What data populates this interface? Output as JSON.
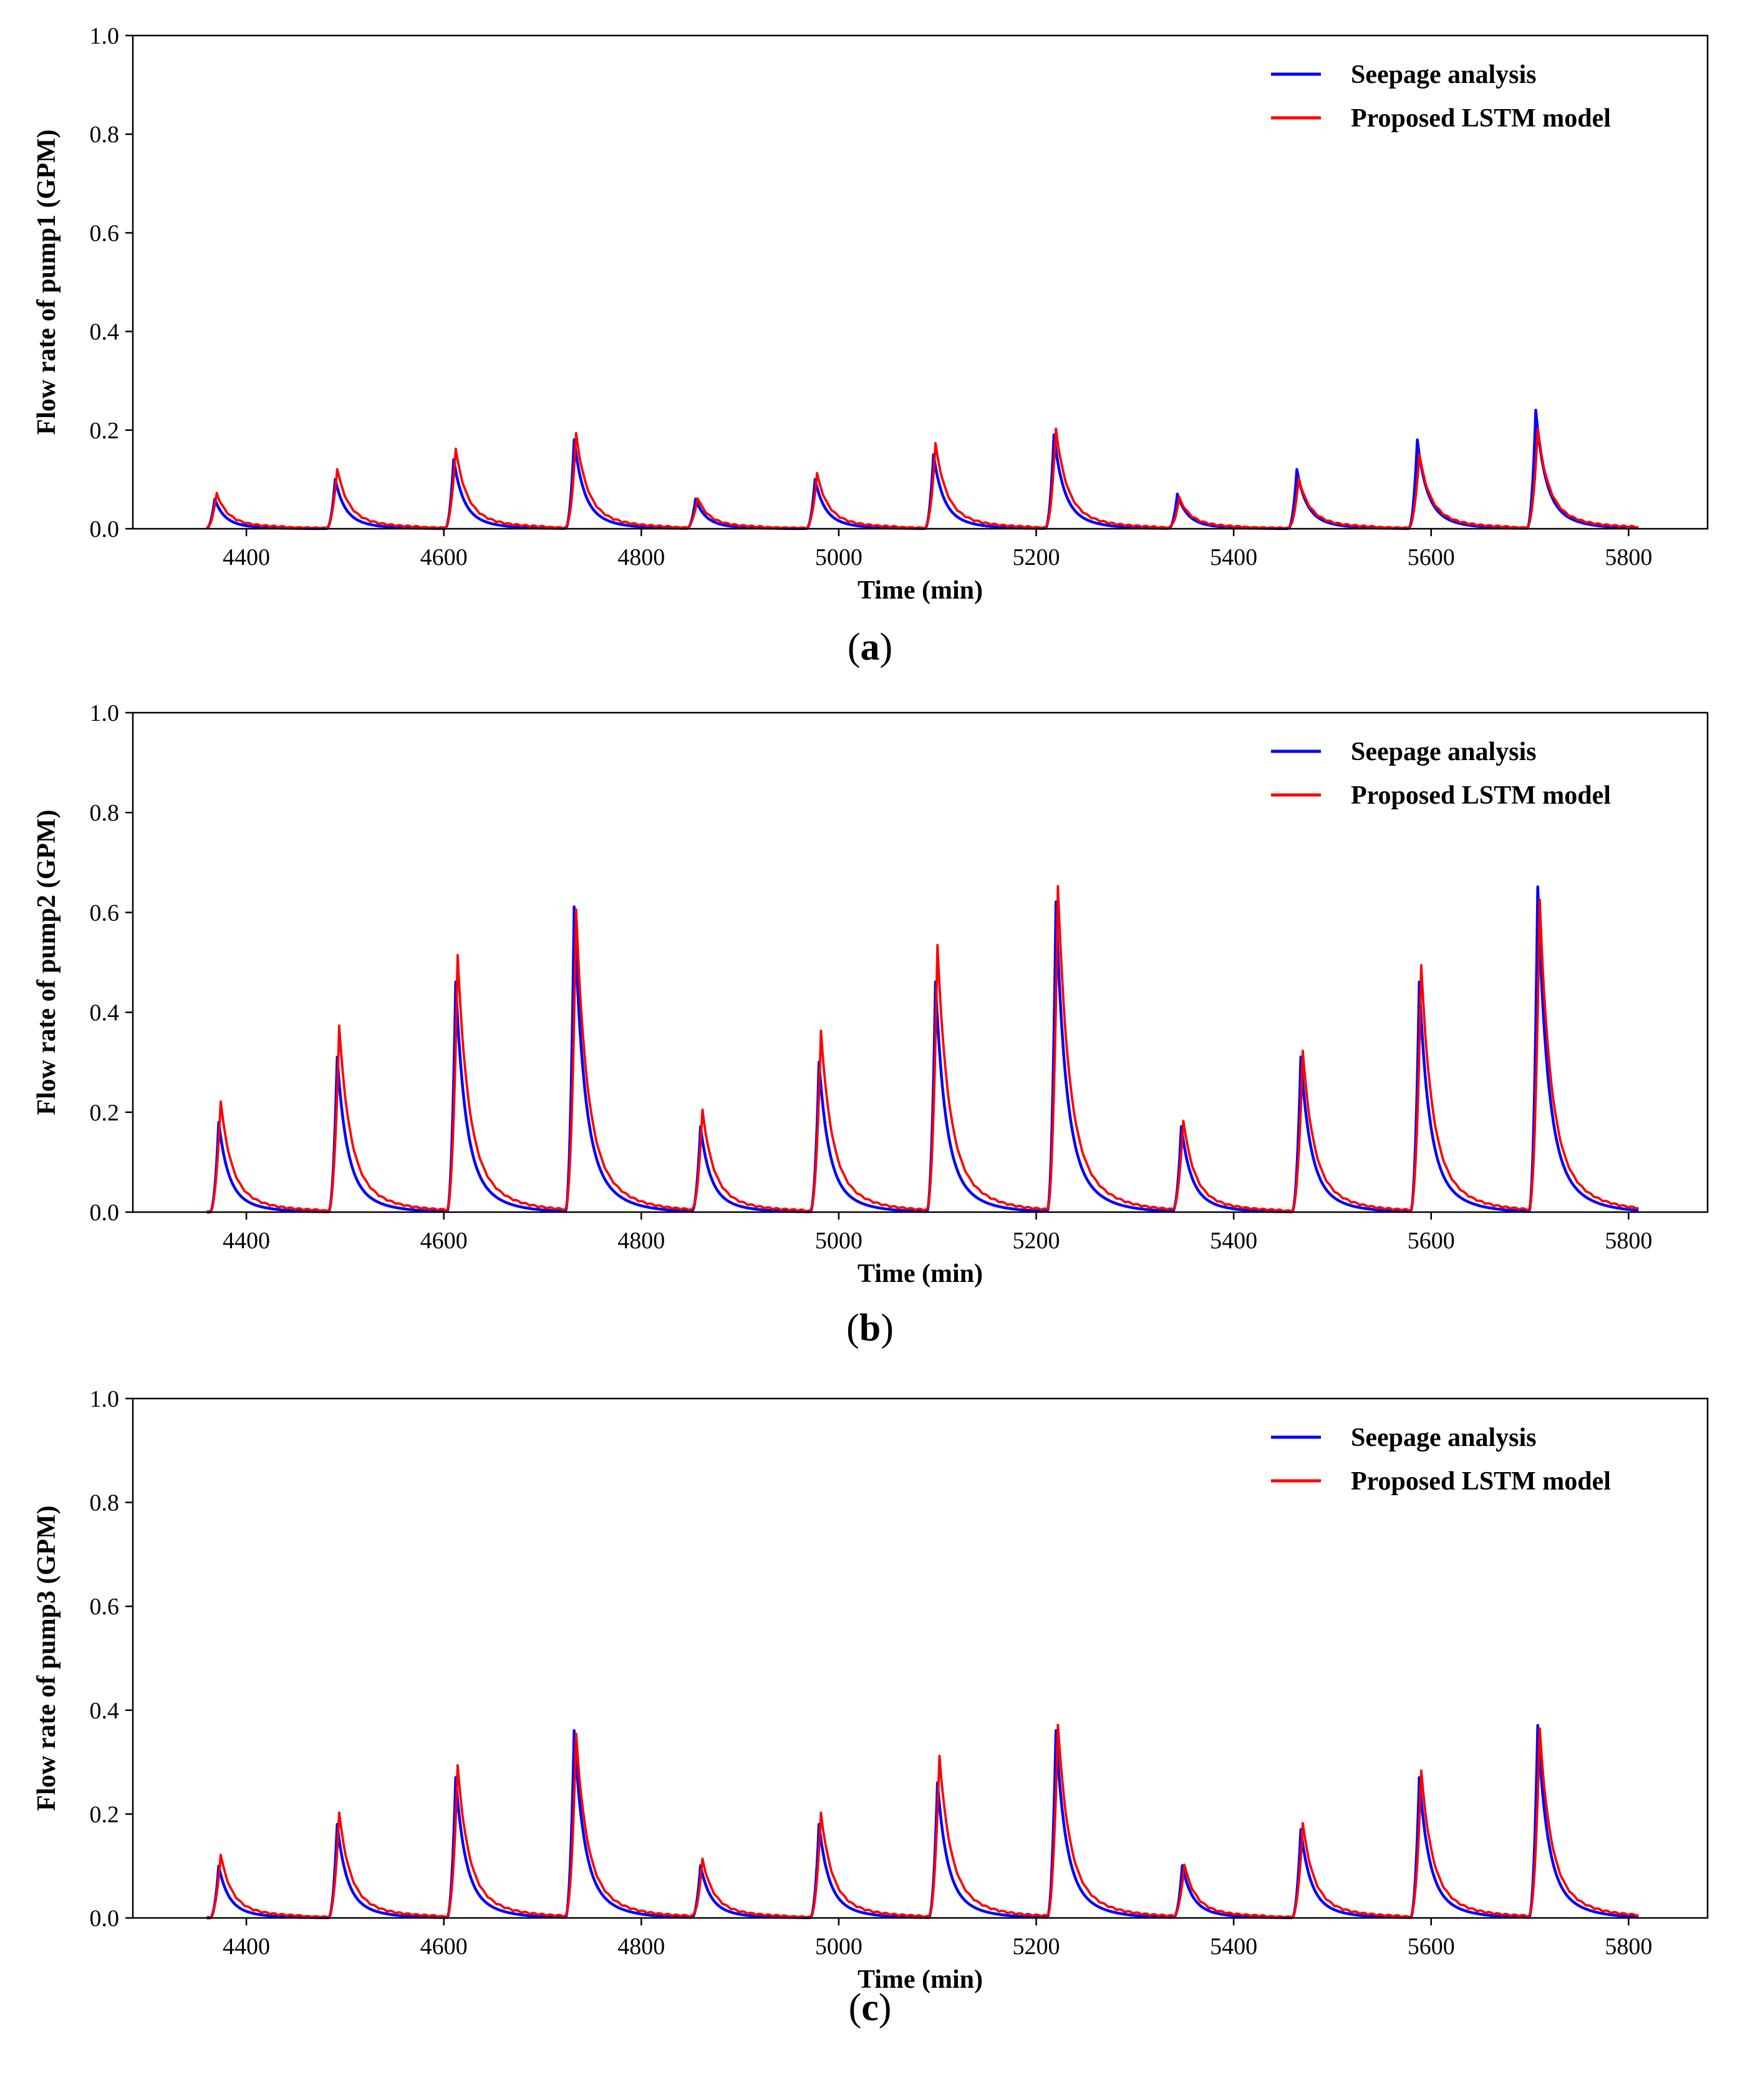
{
  "legend": {
    "series": [
      {
        "name": "Seepage analysis",
        "color": "#0000ff"
      },
      {
        "name": "Proposed LSTM model",
        "color": "#ff0000"
      }
    ]
  },
  "chart_data": [
    {
      "type": "line",
      "panel": "a",
      "caption": "a",
      "ylabel": "Flow rate of pump1 (GPM)",
      "xlabel": "Time (min)",
      "xlim": [
        4285,
        5880
      ],
      "ylim": [
        0,
        1.0
      ],
      "xticks": [
        4400,
        4600,
        4800,
        5000,
        5200,
        5400,
        5600,
        5800
      ],
      "yticks": [
        0.0,
        0.2,
        0.4,
        0.6,
        0.8,
        1.0
      ],
      "grid": false,
      "legend_position": "top-right",
      "x_range": [
        4360,
        5810
      ],
      "peak_times": [
        4368,
        4490,
        4610,
        4732,
        4855,
        4976,
        5096,
        5218,
        5343,
        5464,
        5586,
        5706
      ],
      "series": [
        {
          "name": "Seepage analysis",
          "color": "#0000ff",
          "peaks": [
            0.06,
            0.1,
            0.14,
            0.18,
            0.06,
            0.1,
            0.15,
            0.19,
            0.07,
            0.12,
            0.18,
            0.24
          ]
        },
        {
          "name": "Proposed LSTM model",
          "color": "#ff0000",
          "peaks": [
            0.07,
            0.12,
            0.16,
            0.19,
            0.06,
            0.11,
            0.17,
            0.2,
            0.06,
            0.1,
            0.15,
            0.2
          ]
        }
      ]
    },
    {
      "type": "line",
      "panel": "b",
      "caption": "b",
      "ylabel": "Flow rate of pump2 (GPM)",
      "xlabel": "Time (min)",
      "xlim": [
        4285,
        5880
      ],
      "ylim": [
        0,
        1.0
      ],
      "xticks": [
        4400,
        4600,
        4800,
        5000,
        5200,
        5400,
        5600,
        5800
      ],
      "yticks": [
        0.0,
        0.2,
        0.4,
        0.6,
        0.8,
        1.0
      ],
      "grid": false,
      "legend_position": "top-right",
      "x_range": [
        4360,
        5810
      ],
      "peak_times": [
        4372,
        4492,
        4612,
        4732,
        4860,
        4980,
        5098,
        5220,
        5347,
        5468,
        5588,
        5708
      ],
      "series": [
        {
          "name": "Seepage analysis",
          "color": "#0000ff",
          "peaks": [
            0.18,
            0.31,
            0.46,
            0.61,
            0.17,
            0.3,
            0.46,
            0.62,
            0.17,
            0.31,
            0.46,
            0.65
          ]
        },
        {
          "name": "Proposed LSTM model",
          "color": "#ff0000",
          "peaks": [
            0.22,
            0.37,
            0.51,
            0.6,
            0.2,
            0.36,
            0.53,
            0.65,
            0.18,
            0.32,
            0.49,
            0.62
          ]
        }
      ]
    },
    {
      "type": "line",
      "panel": "c",
      "caption": "c",
      "ylabel": "Flow rate of pump3 (GPM)",
      "xlabel": "Time (min)",
      "xlim": [
        4285,
        5880
      ],
      "ylim": [
        0,
        1.0
      ],
      "xticks": [
        4400,
        4600,
        4800,
        5000,
        5200,
        5400,
        5600,
        5800
      ],
      "yticks": [
        0.0,
        0.2,
        0.4,
        0.6,
        0.8,
        1.0
      ],
      "grid": false,
      "legend_position": "top-right",
      "x_range": [
        4360,
        5810
      ],
      "peak_times": [
        4372,
        4492,
        4612,
        4732,
        4860,
        4980,
        5100,
        5220,
        5348,
        5468,
        5588,
        5708
      ],
      "series": [
        {
          "name": "Seepage analysis",
          "color": "#0000ff",
          "peaks": [
            0.1,
            0.18,
            0.27,
            0.36,
            0.1,
            0.18,
            0.26,
            0.36,
            0.1,
            0.17,
            0.27,
            0.37
          ]
        },
        {
          "name": "Proposed LSTM model",
          "color": "#ff0000",
          "peaks": [
            0.12,
            0.2,
            0.29,
            0.35,
            0.11,
            0.2,
            0.31,
            0.37,
            0.1,
            0.18,
            0.28,
            0.36
          ]
        }
      ]
    }
  ]
}
